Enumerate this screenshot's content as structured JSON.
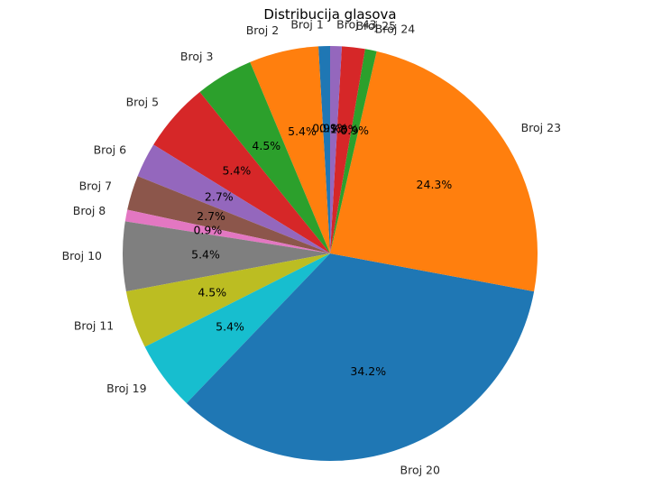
{
  "chart_data": {
    "type": "pie",
    "title": "Distribucija glasova",
    "start_angle_deg": 90,
    "direction": "counterclockwise",
    "slices": [
      {
        "label": "Broj 1",
        "value": 0.9,
        "pct_label": "0.9%",
        "color": "#1f77b4"
      },
      {
        "label": "Broj 2",
        "value": 5.4,
        "pct_label": "5.4%",
        "color": "#ff7f0e"
      },
      {
        "label": "Broj 3",
        "value": 4.5,
        "pct_label": "4.5%",
        "color": "#2ca02c"
      },
      {
        "label": "Broj 5",
        "value": 5.4,
        "pct_label": "5.4%",
        "color": "#d62728"
      },
      {
        "label": "Broj 6",
        "value": 2.7,
        "pct_label": "2.7%",
        "color": "#9467bd"
      },
      {
        "label": "Broj 7",
        "value": 2.7,
        "pct_label": "2.7%",
        "color": "#8c564b"
      },
      {
        "label": "Broj 8",
        "value": 0.9,
        "pct_label": "0.9%",
        "color": "#e377c2"
      },
      {
        "label": "Broj 10",
        "value": 5.4,
        "pct_label": "5.4%",
        "color": "#7f7f7f"
      },
      {
        "label": "Broj 11",
        "value": 4.5,
        "pct_label": "4.5%",
        "color": "#bcbd22"
      },
      {
        "label": "Broj 19",
        "value": 5.4,
        "pct_label": "5.4%",
        "color": "#17becf"
      },
      {
        "label": "Broj 20",
        "value": 34.2,
        "pct_label": "34.2%",
        "color": "#1f77b4"
      },
      {
        "label": "Broj 23",
        "value": 24.3,
        "pct_label": "24.3%",
        "color": "#ff7f0e"
      },
      {
        "label": "Broj 24",
        "value": 0.9,
        "pct_label": "0.9%",
        "color": "#2ca02c"
      },
      {
        "label": "Broj 25",
        "value": 1.8,
        "pct_label": "1.8%",
        "color": "#d62728"
      },
      {
        "label": "Broj 43",
        "value": 0.9,
        "pct_label": "0.9%",
        "color": "#9467bd"
      }
    ]
  }
}
